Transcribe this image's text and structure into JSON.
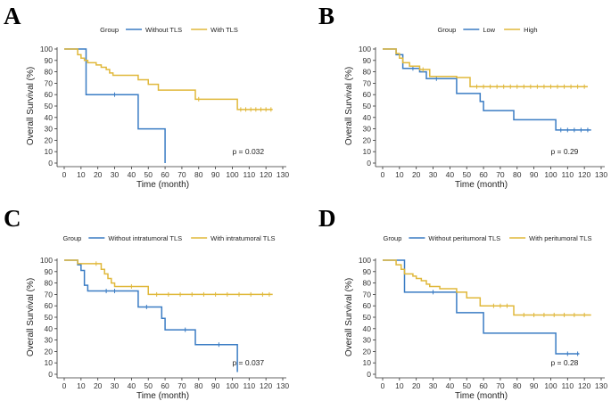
{
  "colors": {
    "blue": "#3a7cc4",
    "gold": "#e0b83a"
  },
  "chart_data": [
    {
      "id": "A",
      "type": "line",
      "panel_label": "A",
      "legend_title": "Group",
      "xlabel": "Time (month)",
      "ylabel": "Overall Survival (%)",
      "xlim": [
        0,
        130
      ],
      "ylim": [
        0,
        100
      ],
      "xticks": [
        0,
        10,
        20,
        30,
        40,
        50,
        60,
        70,
        80,
        90,
        100,
        110,
        120,
        130
      ],
      "yticks": [
        0,
        10,
        20,
        30,
        40,
        50,
        60,
        70,
        80,
        90,
        100
      ],
      "p_value": "p = 0.032",
      "series": [
        {
          "name": "Without TLS",
          "color": "blue",
          "steps": [
            [
              0,
              100
            ],
            [
              13,
              60
            ],
            [
              44,
              30
            ],
            [
              60,
              0
            ]
          ],
          "end": 60,
          "censors": [
            30
          ]
        },
        {
          "name": "With TLS",
          "color": "gold",
          "steps": [
            [
              0,
              100
            ],
            [
              8,
              95
            ],
            [
              10,
              92
            ],
            [
              12,
              90
            ],
            [
              14,
              88
            ],
            [
              19,
              86
            ],
            [
              22,
              84
            ],
            [
              25,
              82
            ],
            [
              27,
              79
            ],
            [
              29,
              77
            ],
            [
              44,
              73
            ],
            [
              50,
              69
            ],
            [
              56,
              64
            ],
            [
              78,
              56
            ],
            [
              103,
              47
            ]
          ],
          "end": 124,
          "censors": [
            80,
            105,
            108,
            111,
            114,
            117,
            120,
            123
          ]
        }
      ]
    },
    {
      "id": "B",
      "type": "line",
      "panel_label": "B",
      "legend_title": "Group",
      "xlabel": "Time (month)",
      "ylabel": "Overall Survival (%)",
      "xlim": [
        0,
        130
      ],
      "ylim": [
        0,
        100
      ],
      "xticks": [
        0,
        10,
        20,
        30,
        40,
        50,
        60,
        70,
        80,
        90,
        100,
        110,
        120,
        130
      ],
      "yticks": [
        0,
        10,
        20,
        30,
        40,
        50,
        60,
        70,
        80,
        90,
        100
      ],
      "p_value": "p = 0.29",
      "series": [
        {
          "name": "Low",
          "color": "blue",
          "steps": [
            [
              0,
              100
            ],
            [
              8,
              95
            ],
            [
              12,
              83
            ],
            [
              22,
              80
            ],
            [
              26,
              74
            ],
            [
              44,
              61
            ],
            [
              58,
              54
            ],
            [
              60,
              46
            ],
            [
              78,
              38
            ],
            [
              103,
              29
            ]
          ],
          "end": 124,
          "censors": [
            18,
            32,
            106,
            110,
            114,
            118,
            122
          ]
        },
        {
          "name": "High",
          "color": "gold",
          "steps": [
            [
              0,
              100
            ],
            [
              8,
              96
            ],
            [
              10,
              92
            ],
            [
              12,
              88
            ],
            [
              16,
              85
            ],
            [
              22,
              82
            ],
            [
              28,
              76
            ],
            [
              44,
              75
            ],
            [
              52,
              67
            ]
          ],
          "end": 122,
          "censors": [
            24,
            56,
            60,
            64,
            68,
            72,
            76,
            80,
            84,
            88,
            92,
            96,
            100,
            104,
            108,
            112,
            116,
            120
          ]
        }
      ]
    },
    {
      "id": "C",
      "type": "line",
      "panel_label": "C",
      "legend_title": "Group",
      "xlabel": "Time (month)",
      "ylabel": "Overall Survival (%)",
      "xlim": [
        0,
        130
      ],
      "ylim": [
        0,
        100
      ],
      "xticks": [
        0,
        10,
        20,
        30,
        40,
        50,
        60,
        70,
        80,
        90,
        100,
        110,
        120,
        130
      ],
      "yticks": [
        0,
        10,
        20,
        30,
        40,
        50,
        60,
        70,
        80,
        90,
        100
      ],
      "p_value": "p = 0.037",
      "series": [
        {
          "name": "Without intratumoral TLS",
          "color": "blue",
          "steps": [
            [
              0,
              100
            ],
            [
              8,
              96
            ],
            [
              10,
              91
            ],
            [
              12,
              78
            ],
            [
              14,
              73
            ],
            [
              44,
              59
            ],
            [
              58,
              49
            ],
            [
              60,
              39
            ],
            [
              78,
              26
            ],
            [
              103,
              2
            ]
          ],
          "end": 103,
          "censors": [
            25,
            30,
            49,
            72,
            92
          ]
        },
        {
          "name": "With intratumoral TLS",
          "color": "gold",
          "steps": [
            [
              0,
              100
            ],
            [
              8,
              97
            ],
            [
              22,
              92
            ],
            [
              24,
              88
            ],
            [
              26,
              84
            ],
            [
              28,
              80
            ],
            [
              30,
              77
            ],
            [
              50,
              70
            ]
          ],
          "end": 124,
          "censors": [
            19,
            40,
            55,
            62,
            69,
            76,
            83,
            90,
            97,
            104,
            111,
            118,
            122
          ]
        }
      ]
    },
    {
      "id": "D",
      "type": "line",
      "panel_label": "D",
      "legend_title": "Group",
      "xlabel": "Time (month)",
      "ylabel": "Overall Survival (%)",
      "xlim": [
        0,
        130
      ],
      "ylim": [
        0,
        100
      ],
      "xticks": [
        0,
        10,
        20,
        30,
        40,
        50,
        60,
        70,
        80,
        90,
        100,
        110,
        120,
        130
      ],
      "yticks": [
        0,
        10,
        20,
        30,
        40,
        50,
        60,
        70,
        80,
        90,
        100
      ],
      "p_value": "p = 0.28",
      "series": [
        {
          "name": "Without peritumoral TLS",
          "color": "blue",
          "steps": [
            [
              0,
              100
            ],
            [
              13,
              72
            ],
            [
              44,
              54
            ],
            [
              60,
              36
            ],
            [
              103,
              18
            ]
          ],
          "end": 117,
          "censors": [
            30,
            110,
            116
          ]
        },
        {
          "name": "With peritumoral TLS",
          "color": "gold",
          "steps": [
            [
              0,
              100
            ],
            [
              8,
              96
            ],
            [
              11,
              92
            ],
            [
              13,
              88
            ],
            [
              18,
              86
            ],
            [
              20,
              84
            ],
            [
              23,
              82
            ],
            [
              26,
              79
            ],
            [
              28,
              77
            ],
            [
              34,
              75
            ],
            [
              44,
              72
            ],
            [
              50,
              67
            ],
            [
              58,
              60
            ],
            [
              78,
              52
            ]
          ],
          "end": 124,
          "censors": [
            66,
            70,
            74,
            84,
            90,
            96,
            102,
            108,
            114,
            120
          ]
        }
      ]
    }
  ]
}
